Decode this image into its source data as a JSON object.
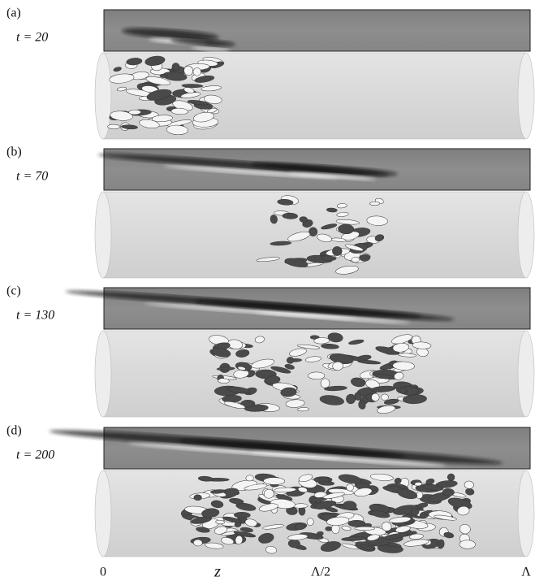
{
  "panels": [
    {
      "label": "(a)",
      "time": "t = 20"
    },
    {
      "label": "(b)",
      "time": "t = 70"
    },
    {
      "label": "(c)",
      "time": "t = 130"
    },
    {
      "label": "(d)",
      "time": "t = 200"
    }
  ],
  "axis": {
    "start": "0",
    "label": "z",
    "middle": "Λ/2",
    "end": "Λ"
  }
}
